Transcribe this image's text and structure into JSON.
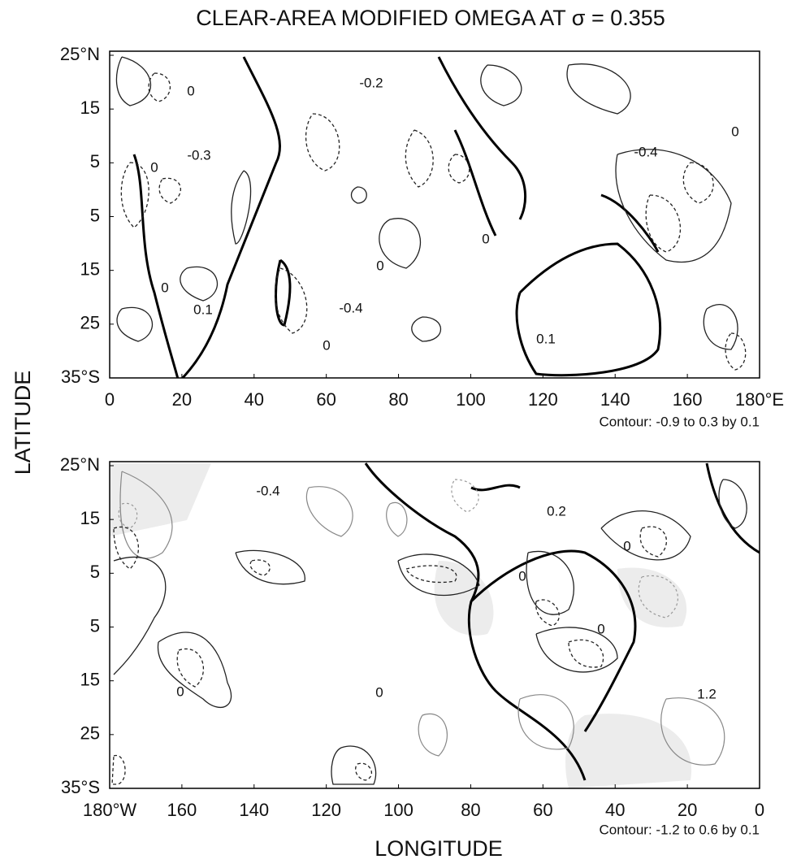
{
  "chart_data": [
    {
      "type": "contour",
      "title": "CLEAR-AREA MODIFIED OMEGA  AT σ = 0.355",
      "ylabel": "LATITUDE",
      "xlim": [
        0,
        180
      ],
      "xticks": [
        0,
        20,
        40,
        60,
        80,
        100,
        120,
        140,
        160,
        {
          "value": 180,
          "label": "180°E"
        }
      ],
      "ylim": [
        -35,
        25
      ],
      "yticks": [
        {
          "value": 25,
          "label": "25°N"
        },
        15,
        5,
        {
          "value": -5,
          "label": "5"
        },
        {
          "value": -15,
          "label": "15"
        },
        {
          "value": -25,
          "label": "25"
        },
        {
          "value": -35,
          "label": "35°S"
        }
      ],
      "annotations": [
        "-0.2",
        "0",
        "-0.3",
        "0",
        "-0.4",
        "0",
        "0",
        "0",
        "0",
        "0.1",
        "-0.4",
        "0",
        "0.1"
      ],
      "note": "Contour: -0.9 to 0.3 by 0.1"
    },
    {
      "type": "contour",
      "xlabel": "LONGITUDE",
      "xlim": [
        -180,
        0
      ],
      "xticks": [
        {
          "value": -180,
          "label": "180°W"
        },
        {
          "value": -160,
          "label": "160"
        },
        {
          "value": -140,
          "label": "140"
        },
        {
          "value": -120,
          "label": "120"
        },
        {
          "value": -100,
          "label": "100"
        },
        {
          "value": -80,
          "label": "80"
        },
        {
          "value": -60,
          "label": "60"
        },
        {
          "value": -40,
          "label": "40"
        },
        {
          "value": -20,
          "label": "20"
        },
        0
      ],
      "ylim": [
        -35,
        25
      ],
      "yticks": [
        {
          "value": 25,
          "label": "25°N"
        },
        15,
        {
          "value": 5,
          "label": "5"
        },
        {
          "value": -5,
          "label": "5"
        },
        {
          "value": -15,
          "label": "15"
        },
        {
          "value": -25,
          "label": "25"
        },
        {
          "value": -35,
          "label": "35°S"
        }
      ],
      "annotations": [
        "-0.4",
        "0.2",
        "0",
        "0",
        "0",
        "0",
        "0",
        "1.2"
      ],
      "note": "Contour: -1.2 to 0.6 by 0.1"
    }
  ]
}
